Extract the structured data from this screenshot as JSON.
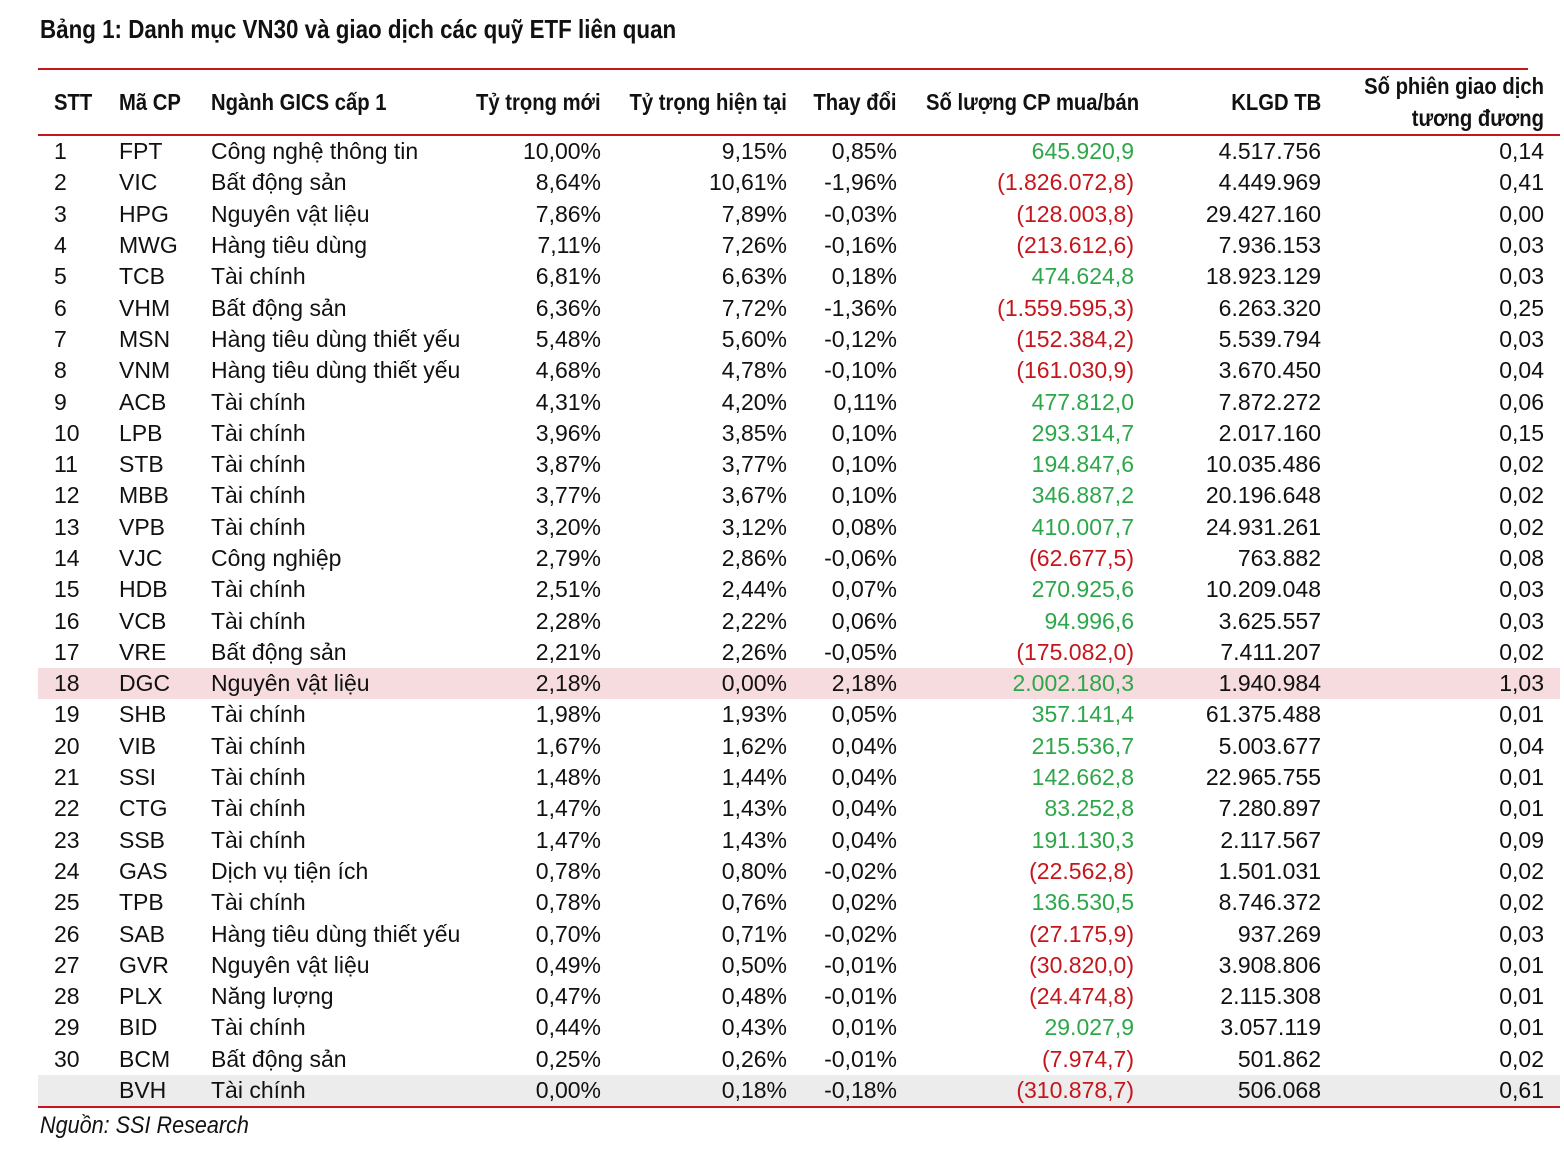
{
  "title": "Bảng 1: Danh mục VN30 và giao dịch các quỹ ETF liên quan",
  "source": "Nguồn: SSI Research",
  "colors": {
    "rule": "#c4161c",
    "positive": "#2ea64a",
    "negative": "#c4161c",
    "highlight_row": "#f6dcdf",
    "grey_row": "#ececec"
  },
  "table": {
    "headers": {
      "stt": "STT",
      "ticker": "Mã CP",
      "sector": "Ngành GICS cấp 1",
      "new_weight": "Tỷ trọng mới",
      "current_weight": "Tỷ trọng hiện tại",
      "change": "Thay đổi",
      "shares": "Số lượng CP mua/bán",
      "avg_volume": "KLGD TB",
      "sessions": "Số phiên giao dịch tương đương"
    },
    "rows": [
      {
        "stt": "1",
        "ticker": "FPT",
        "sector": "Công nghệ thông tin",
        "new_weight": "10,00%",
        "current_weight": "9,15%",
        "change": "0,85%",
        "shares": "645.920,9",
        "sign": "pos",
        "avg_volume": "4.517.756",
        "sessions": "0,14"
      },
      {
        "stt": "2",
        "ticker": "VIC",
        "sector": "Bất động sản",
        "new_weight": "8,64%",
        "current_weight": "10,61%",
        "change": "-1,96%",
        "shares": "(1.826.072,8)",
        "sign": "neg",
        "avg_volume": "4.449.969",
        "sessions": "0,41"
      },
      {
        "stt": "3",
        "ticker": "HPG",
        "sector": "Nguyên vật liệu",
        "new_weight": "7,86%",
        "current_weight": "7,89%",
        "change": "-0,03%",
        "shares": "(128.003,8)",
        "sign": "neg",
        "avg_volume": "29.427.160",
        "sessions": "0,00"
      },
      {
        "stt": "4",
        "ticker": "MWG",
        "sector": "Hàng tiêu dùng",
        "new_weight": "7,11%",
        "current_weight": "7,26%",
        "change": "-0,16%",
        "shares": "(213.612,6)",
        "sign": "neg",
        "avg_volume": "7.936.153",
        "sessions": "0,03"
      },
      {
        "stt": "5",
        "ticker": "TCB",
        "sector": "Tài chính",
        "new_weight": "6,81%",
        "current_weight": "6,63%",
        "change": "0,18%",
        "shares": "474.624,8",
        "sign": "pos",
        "avg_volume": "18.923.129",
        "sessions": "0,03"
      },
      {
        "stt": "6",
        "ticker": "VHM",
        "sector": "Bất động sản",
        "new_weight": "6,36%",
        "current_weight": "7,72%",
        "change": "-1,36%",
        "shares": "(1.559.595,3)",
        "sign": "neg",
        "avg_volume": "6.263.320",
        "sessions": "0,25"
      },
      {
        "stt": "7",
        "ticker": "MSN",
        "sector": "Hàng tiêu dùng thiết yếu",
        "new_weight": "5,48%",
        "current_weight": "5,60%",
        "change": "-0,12%",
        "shares": "(152.384,2)",
        "sign": "neg",
        "avg_volume": "5.539.794",
        "sessions": "0,03"
      },
      {
        "stt": "8",
        "ticker": "VNM",
        "sector": "Hàng tiêu dùng thiết yếu",
        "new_weight": "4,68%",
        "current_weight": "4,78%",
        "change": "-0,10%",
        "shares": "(161.030,9)",
        "sign": "neg",
        "avg_volume": "3.670.450",
        "sessions": "0,04"
      },
      {
        "stt": "9",
        "ticker": "ACB",
        "sector": "Tài chính",
        "new_weight": "4,31%",
        "current_weight": "4,20%",
        "change": "0,11%",
        "shares": "477.812,0",
        "sign": "pos",
        "avg_volume": "7.872.272",
        "sessions": "0,06"
      },
      {
        "stt": "10",
        "ticker": "LPB",
        "sector": "Tài chính",
        "new_weight": "3,96%",
        "current_weight": "3,85%",
        "change": "0,10%",
        "shares": "293.314,7",
        "sign": "pos",
        "avg_volume": "2.017.160",
        "sessions": "0,15"
      },
      {
        "stt": "11",
        "ticker": "STB",
        "sector": "Tài chính",
        "new_weight": "3,87%",
        "current_weight": "3,77%",
        "change": "0,10%",
        "shares": "194.847,6",
        "sign": "pos",
        "avg_volume": "10.035.486",
        "sessions": "0,02"
      },
      {
        "stt": "12",
        "ticker": "MBB",
        "sector": "Tài chính",
        "new_weight": "3,77%",
        "current_weight": "3,67%",
        "change": "0,10%",
        "shares": "346.887,2",
        "sign": "pos",
        "avg_volume": "20.196.648",
        "sessions": "0,02"
      },
      {
        "stt": "13",
        "ticker": "VPB",
        "sector": "Tài chính",
        "new_weight": "3,20%",
        "current_weight": "3,12%",
        "change": "0,08%",
        "shares": "410.007,7",
        "sign": "pos",
        "avg_volume": "24.931.261",
        "sessions": "0,02"
      },
      {
        "stt": "14",
        "ticker": "VJC",
        "sector": "Công nghiệp",
        "new_weight": "2,79%",
        "current_weight": "2,86%",
        "change": "-0,06%",
        "shares": "(62.677,5)",
        "sign": "neg",
        "avg_volume": "763.882",
        "sessions": "0,08"
      },
      {
        "stt": "15",
        "ticker": "HDB",
        "sector": "Tài chính",
        "new_weight": "2,51%",
        "current_weight": "2,44%",
        "change": "0,07%",
        "shares": "270.925,6",
        "sign": "pos",
        "avg_volume": "10.209.048",
        "sessions": "0,03"
      },
      {
        "stt": "16",
        "ticker": "VCB",
        "sector": "Tài chính",
        "new_weight": "2,28%",
        "current_weight": "2,22%",
        "change": "0,06%",
        "shares": "94.996,6",
        "sign": "pos",
        "avg_volume": "3.625.557",
        "sessions": "0,03"
      },
      {
        "stt": "17",
        "ticker": "VRE",
        "sector": "Bất động sản",
        "new_weight": "2,21%",
        "current_weight": "2,26%",
        "change": "-0,05%",
        "shares": "(175.082,0)",
        "sign": "neg",
        "avg_volume": "7.411.207",
        "sessions": "0,02"
      },
      {
        "stt": "18",
        "ticker": "DGC",
        "sector": "Nguyên vật liệu",
        "new_weight": "2,18%",
        "current_weight": "0,00%",
        "change": "2,18%",
        "shares": "2.002.180,3",
        "sign": "pos",
        "avg_volume": "1.940.984",
        "sessions": "1,03",
        "style": "highlight"
      },
      {
        "stt": "19",
        "ticker": "SHB",
        "sector": "Tài chính",
        "new_weight": "1,98%",
        "current_weight": "1,93%",
        "change": "0,05%",
        "shares": "357.141,4",
        "sign": "pos",
        "avg_volume": "61.375.488",
        "sessions": "0,01"
      },
      {
        "stt": "20",
        "ticker": "VIB",
        "sector": "Tài chính",
        "new_weight": "1,67%",
        "current_weight": "1,62%",
        "change": "0,04%",
        "shares": "215.536,7",
        "sign": "pos",
        "avg_volume": "5.003.677",
        "sessions": "0,04"
      },
      {
        "stt": "21",
        "ticker": "SSI",
        "sector": "Tài chính",
        "new_weight": "1,48%",
        "current_weight": "1,44%",
        "change": "0,04%",
        "shares": "142.662,8",
        "sign": "pos",
        "avg_volume": "22.965.755",
        "sessions": "0,01"
      },
      {
        "stt": "22",
        "ticker": "CTG",
        "sector": "Tài chính",
        "new_weight": "1,47%",
        "current_weight": "1,43%",
        "change": "0,04%",
        "shares": "83.252,8",
        "sign": "pos",
        "avg_volume": "7.280.897",
        "sessions": "0,01"
      },
      {
        "stt": "23",
        "ticker": "SSB",
        "sector": "Tài chính",
        "new_weight": "1,47%",
        "current_weight": "1,43%",
        "change": "0,04%",
        "shares": "191.130,3",
        "sign": "pos",
        "avg_volume": "2.117.567",
        "sessions": "0,09"
      },
      {
        "stt": "24",
        "ticker": "GAS",
        "sector": "Dịch vụ tiện ích",
        "new_weight": "0,78%",
        "current_weight": "0,80%",
        "change": "-0,02%",
        "shares": "(22.562,8)",
        "sign": "neg",
        "avg_volume": "1.501.031",
        "sessions": "0,02"
      },
      {
        "stt": "25",
        "ticker": "TPB",
        "sector": "Tài chính",
        "new_weight": "0,78%",
        "current_weight": "0,76%",
        "change": "0,02%",
        "shares": "136.530,5",
        "sign": "pos",
        "avg_volume": "8.746.372",
        "sessions": "0,02"
      },
      {
        "stt": "26",
        "ticker": "SAB",
        "sector": "Hàng tiêu dùng thiết yếu",
        "new_weight": "0,70%",
        "current_weight": "0,71%",
        "change": "-0,02%",
        "shares": "(27.175,9)",
        "sign": "neg",
        "avg_volume": "937.269",
        "sessions": "0,03"
      },
      {
        "stt": "27",
        "ticker": "GVR",
        "sector": "Nguyên vật liệu",
        "new_weight": "0,49%",
        "current_weight": "0,50%",
        "change": "-0,01%",
        "shares": "(30.820,0)",
        "sign": "neg",
        "avg_volume": "3.908.806",
        "sessions": "0,01"
      },
      {
        "stt": "28",
        "ticker": "PLX",
        "sector": "Năng lượng",
        "new_weight": "0,47%",
        "current_weight": "0,48%",
        "change": "-0,01%",
        "shares": "(24.474,8)",
        "sign": "neg",
        "avg_volume": "2.115.308",
        "sessions": "0,01"
      },
      {
        "stt": "29",
        "ticker": "BID",
        "sector": "Tài chính",
        "new_weight": "0,44%",
        "current_weight": "0,43%",
        "change": "0,01%",
        "shares": "29.027,9",
        "sign": "pos",
        "avg_volume": "3.057.119",
        "sessions": "0,01"
      },
      {
        "stt": "30",
        "ticker": "BCM",
        "sector": "Bất động sản",
        "new_weight": "0,25%",
        "current_weight": "0,26%",
        "change": "-0,01%",
        "shares": "(7.974,7)",
        "sign": "neg",
        "avg_volume": "501.862",
        "sessions": "0,02"
      },
      {
        "stt": "",
        "ticker": "BVH",
        "sector": "Tài chính",
        "new_weight": "0,00%",
        "current_weight": "0,18%",
        "change": "-0,18%",
        "shares": "(310.878,7)",
        "sign": "neg",
        "avg_volume": "506.068",
        "sessions": "0,61",
        "style": "grey"
      }
    ]
  }
}
